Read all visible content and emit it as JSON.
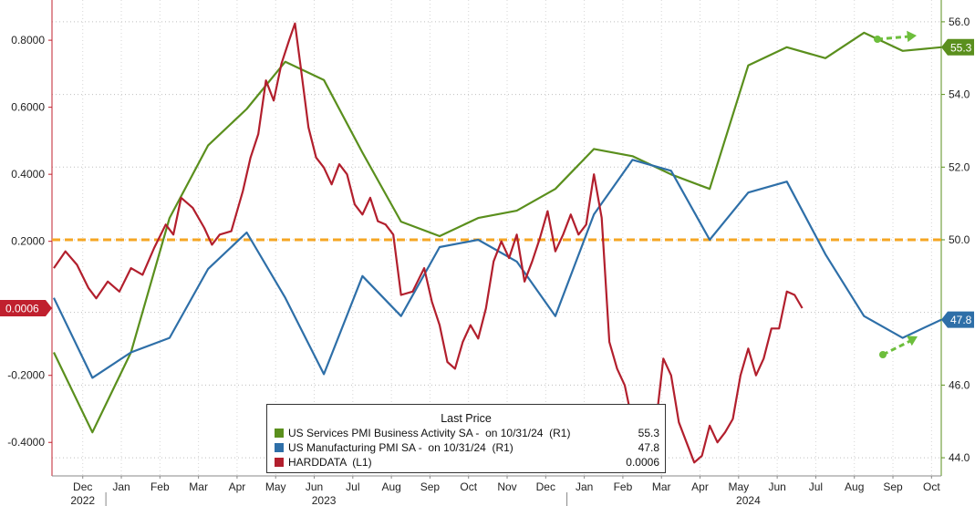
{
  "chart_data": {
    "type": "line",
    "x_ticks": [
      "Dec",
      "Jan",
      "Feb",
      "Mar",
      "Apr",
      "May",
      "Jun",
      "Jul",
      "Aug",
      "Sep",
      "Oct",
      "Nov",
      "Dec",
      "Jan",
      "Feb",
      "Mar",
      "Apr",
      "May",
      "Jun",
      "Jul",
      "Aug",
      "Sep",
      "Oct"
    ],
    "year_labels": [
      "2022",
      "2023",
      "2024"
    ],
    "left_axis": {
      "ticks": [
        "0.8000",
        "0.6000",
        "0.4000",
        "0.2000",
        "-0.2000",
        "-0.4000"
      ],
      "tick_values": [
        0.8,
        0.6,
        0.4,
        0.2,
        -0.2,
        -0.4
      ],
      "range": [
        -0.5,
        0.92
      ]
    },
    "right_axis": {
      "ticks": [
        "56.0",
        "54.0",
        "52.0",
        "50.0",
        "46.0",
        "44.0"
      ],
      "tick_values": [
        56,
        54,
        52,
        50,
        46,
        44
      ],
      "range": [
        43.5,
        56.6
      ]
    },
    "reference_line": {
      "axis": "right",
      "value": 50.0,
      "color": "#f5a623"
    },
    "legend": {
      "title": "Last Price",
      "items": [
        {
          "label": "US Services PMI Business Activity SA -  on 10/31/24  (R1)",
          "value": "55.3",
          "color": "#5a8f1d"
        },
        {
          "label": "US Manufacturing PMI SA -  on 10/31/24  (R1)",
          "value": "47.8",
          "color": "#2e6fa8"
        },
        {
          "label": "HARDDATA  (L1)",
          "value": "0.0006",
          "color": "#b21f2d"
        }
      ]
    },
    "last_value_tags": {
      "services": "55.3",
      "manufacturing": "47.8",
      "harddata": "0.0006"
    },
    "series": [
      {
        "key": "services",
        "name": "US Services PMI Business Activity SA",
        "axis": "right",
        "color": "#5a8f1d",
        "points": [
          [
            0,
            46.9
          ],
          [
            1,
            44.7
          ],
          [
            2,
            46.9
          ],
          [
            3,
            50.6
          ],
          [
            4,
            52.6
          ],
          [
            5,
            53.6
          ],
          [
            6,
            54.9
          ],
          [
            7,
            54.4
          ],
          [
            8,
            52.4
          ],
          [
            9,
            50.5
          ],
          [
            10,
            50.1
          ],
          [
            11,
            50.6
          ],
          [
            12,
            50.8
          ],
          [
            13,
            51.4
          ],
          [
            14,
            52.5
          ],
          [
            15,
            52.3
          ],
          [
            16,
            51.8
          ],
          [
            17,
            51.4
          ],
          [
            18,
            54.8
          ],
          [
            19,
            55.3
          ],
          [
            20,
            55.0
          ],
          [
            21,
            55.7
          ],
          [
            22,
            55.2
          ],
          [
            23,
            55.3
          ]
        ]
      },
      {
        "key": "manufacturing",
        "name": "US Manufacturing PMI SA",
        "axis": "right",
        "color": "#2e6fa8",
        "points": [
          [
            0,
            48.4
          ],
          [
            1,
            46.2
          ],
          [
            2,
            46.9
          ],
          [
            3,
            47.3
          ],
          [
            4,
            49.2
          ],
          [
            5,
            50.2
          ],
          [
            6,
            48.4
          ],
          [
            7,
            46.3
          ],
          [
            8,
            49.0
          ],
          [
            9,
            47.9
          ],
          [
            10,
            49.8
          ],
          [
            11,
            50.0
          ],
          [
            12,
            49.4
          ],
          [
            13,
            47.9
          ],
          [
            14,
            50.7
          ],
          [
            15,
            52.2
          ],
          [
            16,
            51.9
          ],
          [
            17,
            50.0
          ],
          [
            18,
            51.3
          ],
          [
            19,
            51.6
          ],
          [
            20,
            49.6
          ],
          [
            21,
            47.9
          ],
          [
            22,
            47.3
          ],
          [
            23,
            47.8
          ]
        ]
      },
      {
        "key": "harddata",
        "name": "HARDDATA",
        "axis": "left",
        "color": "#b21f2d",
        "points": [
          [
            0.0,
            0.12
          ],
          [
            0.3,
            0.17
          ],
          [
            0.6,
            0.13
          ],
          [
            0.9,
            0.06
          ],
          [
            1.1,
            0.03
          ],
          [
            1.4,
            0.08
          ],
          [
            1.7,
            0.05
          ],
          [
            2.0,
            0.12
          ],
          [
            2.3,
            0.1
          ],
          [
            2.6,
            0.18
          ],
          [
            2.9,
            0.25
          ],
          [
            3.1,
            0.22
          ],
          [
            3.3,
            0.33
          ],
          [
            3.6,
            0.3
          ],
          [
            3.9,
            0.24
          ],
          [
            4.1,
            0.19
          ],
          [
            4.3,
            0.22
          ],
          [
            4.6,
            0.23
          ],
          [
            4.9,
            0.35
          ],
          [
            5.1,
            0.45
          ],
          [
            5.3,
            0.52
          ],
          [
            5.5,
            0.68
          ],
          [
            5.7,
            0.62
          ],
          [
            5.9,
            0.73
          ],
          [
            6.1,
            0.8
          ],
          [
            6.25,
            0.85
          ],
          [
            6.4,
            0.72
          ],
          [
            6.6,
            0.54
          ],
          [
            6.8,
            0.45
          ],
          [
            7.0,
            0.42
          ],
          [
            7.2,
            0.37
          ],
          [
            7.4,
            0.43
          ],
          [
            7.6,
            0.4
          ],
          [
            7.8,
            0.31
          ],
          [
            8.0,
            0.28
          ],
          [
            8.2,
            0.33
          ],
          [
            8.4,
            0.26
          ],
          [
            8.6,
            0.25
          ],
          [
            8.8,
            0.22
          ],
          [
            9.0,
            0.04
          ],
          [
            9.3,
            0.05
          ],
          [
            9.6,
            0.12
          ],
          [
            9.8,
            0.02
          ],
          [
            10.0,
            -0.05
          ],
          [
            10.2,
            -0.16
          ],
          [
            10.4,
            -0.18
          ],
          [
            10.6,
            -0.1
          ],
          [
            10.8,
            -0.05
          ],
          [
            11.0,
            -0.09
          ],
          [
            11.2,
            0.0
          ],
          [
            11.4,
            0.14
          ],
          [
            11.6,
            0.2
          ],
          [
            11.8,
            0.15
          ],
          [
            12.0,
            0.22
          ],
          [
            12.2,
            0.08
          ],
          [
            12.4,
            0.14
          ],
          [
            12.6,
            0.21
          ],
          [
            12.8,
            0.29
          ],
          [
            13.0,
            0.17
          ],
          [
            13.2,
            0.22
          ],
          [
            13.4,
            0.28
          ],
          [
            13.6,
            0.22
          ],
          [
            13.8,
            0.25
          ],
          [
            14.0,
            0.4
          ],
          [
            14.2,
            0.27
          ],
          [
            14.4,
            -0.1
          ],
          [
            14.6,
            -0.18
          ],
          [
            14.8,
            -0.23
          ],
          [
            15.0,
            -0.34
          ],
          [
            15.2,
            -0.38
          ],
          [
            15.4,
            -0.44
          ],
          [
            15.6,
            -0.35
          ],
          [
            15.8,
            -0.15
          ],
          [
            16.0,
            -0.2
          ],
          [
            16.2,
            -0.34
          ],
          [
            16.4,
            -0.4
          ],
          [
            16.6,
            -0.46
          ],
          [
            16.8,
            -0.44
          ],
          [
            17.0,
            -0.35
          ],
          [
            17.2,
            -0.4
          ],
          [
            17.4,
            -0.37
          ],
          [
            17.6,
            -0.33
          ],
          [
            17.8,
            -0.2
          ],
          [
            18.0,
            -0.12
          ],
          [
            18.2,
            -0.2
          ],
          [
            18.4,
            -0.15
          ],
          [
            18.6,
            -0.06
          ],
          [
            18.8,
            -0.06
          ],
          [
            19.0,
            0.05
          ],
          [
            19.2,
            0.04
          ],
          [
            19.4,
            0.0006
          ]
        ]
      }
    ]
  }
}
